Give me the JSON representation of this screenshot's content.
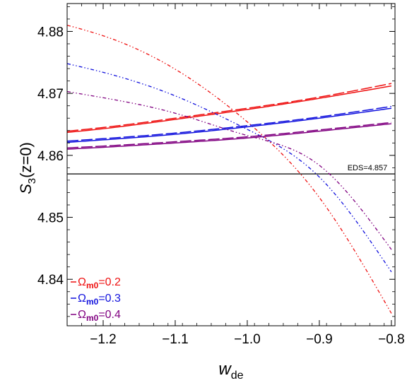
{
  "chart_data": {
    "type": "line",
    "xlabel": "w",
    "xlabel_sub": "de",
    "ylabel": "S",
    "ylabel_sub": "3",
    "ylabel_suffix": "(z=0)",
    "xlim": [
      -1.25,
      -0.795
    ],
    "ylim": [
      4.8325,
      4.8845
    ],
    "x_ticks": [
      -1.2,
      -1.1,
      -1.0,
      -0.9,
      -0.8
    ],
    "x_tick_labels": [
      "−1.2",
      "−1.1",
      "−1.0",
      "−0.9",
      "−0.8"
    ],
    "y_ticks": [
      4.84,
      4.85,
      4.86,
      4.87,
      4.88
    ],
    "y_tick_labels": [
      "4.84",
      "4.85",
      "4.86",
      "4.87",
      "4.88"
    ],
    "grid": false,
    "legend_position": "bottom-left",
    "reference_line": {
      "y": 4.857,
      "label": "EDS=4.857",
      "color": "#000000"
    },
    "series": [
      {
        "name": "Ωm0=0.2",
        "legend_main": "Ω",
        "legend_sub": "m0",
        "legend_value": "=0.2",
        "color": "#ee1111",
        "solid": {
          "x": [
            -1.25,
            -1.2,
            -1.1,
            -1.0,
            -0.9,
            -0.8
          ],
          "y": [
            4.8637,
            4.8643,
            4.8658,
            4.8674,
            4.8692,
            4.8712
          ]
        },
        "dashed": {
          "x": [
            -1.25,
            -1.2,
            -1.1,
            -1.0,
            -0.9,
            -0.8
          ],
          "y": [
            4.8639,
            4.8645,
            4.866,
            4.8676,
            4.8694,
            4.8716
          ]
        },
        "dashdot": {
          "x": [
            -1.25,
            -1.2,
            -1.1,
            -1.0,
            -0.9,
            -0.8
          ],
          "y": [
            4.881,
            4.8793,
            4.8739,
            4.8654,
            4.8532,
            4.8345
          ]
        }
      },
      {
        "name": "Ωm0=0.3",
        "legend_main": "Ω",
        "legend_sub": "m0",
        "legend_value": "=0.3",
        "color": "#1111dd",
        "solid": {
          "x": [
            -1.25,
            -1.2,
            -1.1,
            -1.0,
            -0.9,
            -0.8
          ],
          "y": [
            4.8621,
            4.8625,
            4.8634,
            4.8646,
            4.866,
            4.8676
          ]
        },
        "dashed": {
          "x": [
            -1.25,
            -1.2,
            -1.1,
            -1.0,
            -0.9,
            -0.8
          ],
          "y": [
            4.8623,
            4.8627,
            4.8636,
            4.8648,
            4.8662,
            4.8679
          ]
        },
        "dashdot": {
          "x": [
            -1.25,
            -1.2,
            -1.1,
            -1.0,
            -0.9,
            -0.8
          ],
          "y": [
            4.8748,
            4.8734,
            4.8696,
            4.8642,
            4.8565,
            4.8412
          ]
        }
      },
      {
        "name": "Ωm0=0.4",
        "legend_main": "Ω",
        "legend_sub": "m0",
        "legend_value": "=0.4",
        "color": "#800080",
        "solid": {
          "x": [
            -1.25,
            -1.2,
            -1.1,
            -1.0,
            -0.9,
            -0.8
          ],
          "y": [
            4.861,
            4.8613,
            4.862,
            4.8628,
            4.8639,
            4.8651
          ]
        },
        "dashed": {
          "x": [
            -1.25,
            -1.2,
            -1.1,
            -1.0,
            -0.9,
            -0.8
          ],
          "y": [
            4.8612,
            4.8615,
            4.8622,
            4.863,
            4.8641,
            4.8653
          ]
        },
        "dashdot": {
          "x": [
            -1.25,
            -1.2,
            -1.1,
            -1.0,
            -0.9,
            -0.8
          ],
          "y": [
            4.8703,
            4.8693,
            4.8668,
            4.8632,
            4.8584,
            4.8448
          ]
        }
      }
    ]
  }
}
